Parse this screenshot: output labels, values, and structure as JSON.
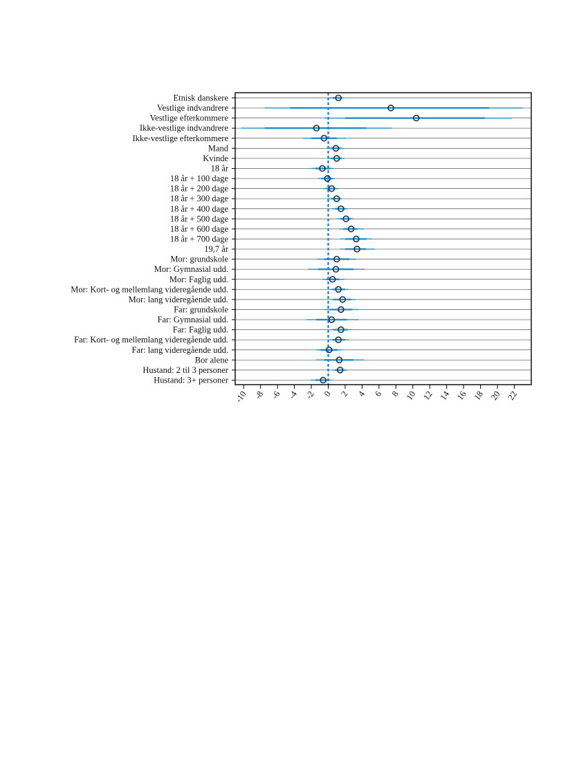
{
  "chart_data": {
    "type": "scatter",
    "subtype": "coefficient-plot-with-intervals",
    "orientation": "horizontal",
    "title": "",
    "xlabel": "",
    "ylabel": "",
    "xlim": [
      -11,
      24
    ],
    "xticks": [
      -10,
      -8,
      -6,
      -4,
      -2,
      0,
      2,
      4,
      6,
      8,
      10,
      12,
      14,
      16,
      18,
      20,
      22
    ],
    "reference_line": 0,
    "grid": "horizontal-lines-per-category",
    "legend": "none",
    "categories": [
      "Etnisk danskere",
      "Vestlige indvandrere",
      "Vestlige efterkommere",
      "Ikke-vestlige indvandrere",
      "Ikke-vestlige efterkommere",
      "Mand",
      "Kvinde",
      "18 år",
      "18 år + 100 dage",
      "18 år + 200 dage",
      "18 år + 300 dage",
      "18 år + 400 dage",
      "18 år + 500 dage",
      "18 år + 600 dage",
      "18 år + 700 dage",
      "19,7 år",
      "Mor: grundskole",
      "Mor: Gymnasial udd.",
      "Mor: Faglig udd.",
      "Mor: Kort- og mellemlang videregående udd.",
      "Mor: lang videregående udd.",
      "Far: grundskole",
      "Far: Gymnasial udd.",
      "Far: Faglig udd.",
      "Far: Kort- og mellemlang videregående udd.",
      "Far: lang videregående udd.",
      "Bor alene",
      "Hustand: 2 til 3 personer",
      "Hustand: 3+ personer"
    ],
    "estimates": [
      1.2,
      7.4,
      10.4,
      -1.4,
      -0.5,
      0.9,
      1.0,
      -0.7,
      -0.1,
      0.4,
      1.0,
      1.5,
      2.1,
      2.7,
      3.3,
      3.4,
      1.0,
      0.9,
      0.5,
      1.2,
      1.7,
      1.5,
      0.4,
      1.5,
      1.2,
      0.1,
      1.3,
      1.4,
      -0.6
    ],
    "ci_95_lower": [
      0.1,
      -7.5,
      -0.5,
      -10.3,
      -3.0,
      -0.2,
      -0.1,
      -2.0,
      -1.2,
      -0.6,
      -0.1,
      0.4,
      1.1,
      1.3,
      1.4,
      1.4,
      -1.3,
      -2.4,
      -0.7,
      0.2,
      0.2,
      -0.5,
      -2.6,
      0.3,
      0.1,
      -1.4,
      -1.5,
      0.5,
      -2.1
    ],
    "ci_95_upper": [
      1.9,
      23.0,
      21.7,
      7.5,
      2.1,
      1.8,
      1.9,
      0.6,
      0.8,
      1.2,
      1.6,
      2.3,
      3.0,
      4.2,
      5.2,
      5.5,
      3.3,
      4.3,
      1.9,
      2.4,
      3.2,
      3.6,
      3.6,
      2.7,
      2.5,
      1.6,
      4.2,
      2.3,
      0.4
    ],
    "ci_90_lower": [
      0.5,
      -4.5,
      2.0,
      -7.5,
      -2.0,
      0.2,
      0.3,
      -1.5,
      -0.8,
      -0.2,
      0.3,
      0.8,
      1.4,
      1.8,
      2.0,
      2.0,
      -0.5,
      -1.2,
      -0.2,
      0.5,
      0.6,
      0.2,
      -1.4,
      0.6,
      0.5,
      -0.9,
      -0.5,
      0.8,
      -1.5
    ],
    "ci_90_upper": [
      1.6,
      19.0,
      18.5,
      4.5,
      1.0,
      1.5,
      1.6,
      0.2,
      0.5,
      0.9,
      1.4,
      2.0,
      2.7,
      3.5,
      4.5,
      4.5,
      2.5,
      3.0,
      1.3,
      2.0,
      2.7,
      2.8,
      2.2,
      2.3,
      2.0,
      1.1,
      3.0,
      2.0,
      0.0
    ],
    "colors": {
      "interval": "#1f8ec4",
      "marker": "#1c2f4a",
      "reference_line": "#1a73e8",
      "gridline": "#555555",
      "axis": "#000000"
    }
  }
}
